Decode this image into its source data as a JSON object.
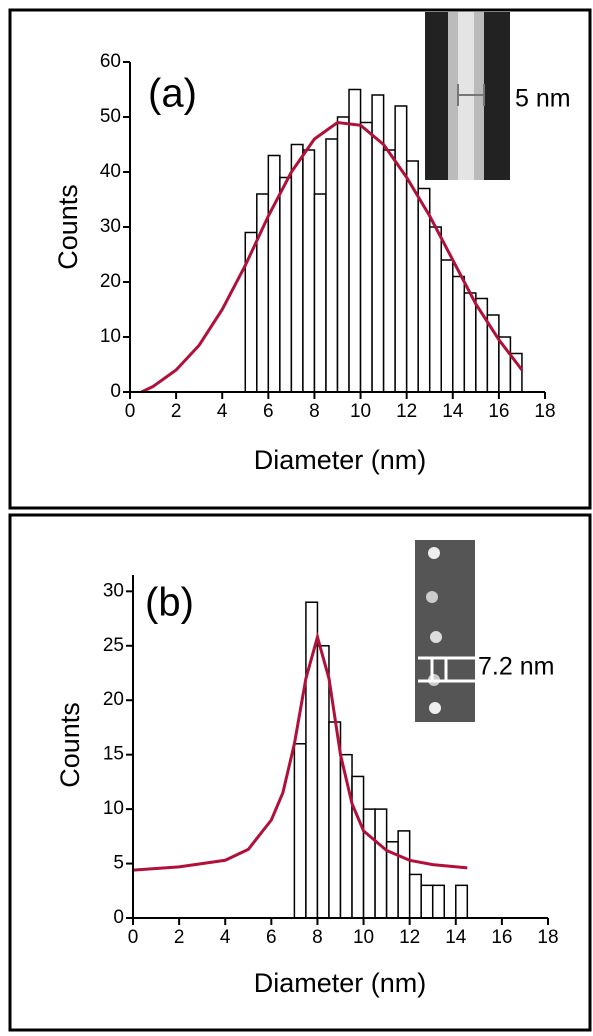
{
  "chart_data": [
    {
      "type": "histogram",
      "label": "(a)",
      "annotation": "5 nm",
      "xlabel": "Diameter (nm)",
      "ylabel": "Counts",
      "xlim": [
        0,
        18
      ],
      "ylim": [
        0,
        60
      ],
      "xticks": [
        0,
        2,
        4,
        6,
        8,
        10,
        12,
        14,
        16,
        18
      ],
      "yticks": [
        0,
        10,
        20,
        30,
        40,
        50,
        60
      ],
      "color": "#000000",
      "bins": [
        5,
        5.5,
        6,
        6.5,
        7,
        7.5,
        8,
        8.5,
        9,
        9.5,
        10,
        10.5,
        11,
        11.5,
        12,
        12.5,
        13,
        13.5,
        14,
        14.5,
        15,
        15.5,
        16,
        16.5,
        17
      ],
      "counts": [
        29,
        36,
        43,
        39,
        45,
        44,
        36,
        46,
        50,
        55,
        49,
        54,
        44,
        52,
        42,
        37,
        30,
        24,
        21,
        18,
        17,
        14,
        10,
        7
      ],
      "series": [
        {
          "color": "#b0103a",
          "x": [
            0.5,
            1,
            2,
            3,
            4,
            5,
            6,
            7,
            8,
            9,
            10,
            11,
            12,
            13,
            14,
            15,
            16,
            17
          ],
          "values": [
            0,
            1,
            4,
            8.5,
            15,
            23,
            32,
            40,
            46,
            49,
            48.5,
            45,
            39,
            32,
            24,
            16,
            9.5,
            4
          ]
        }
      ]
    },
    {
      "type": "histogram",
      "label": "(b)",
      "annotation": "7.2 nm",
      "xlabel": "Diameter (nm)",
      "ylabel": "Counts",
      "xlim": [
        0,
        18
      ],
      "ylim": [
        0,
        31.5
      ],
      "xticks": [
        0,
        2,
        4,
        6,
        8,
        10,
        12,
        14,
        16,
        18
      ],
      "yticks": [
        0,
        5,
        10,
        15,
        20,
        25,
        30
      ],
      "color": "#000000",
      "bins": [
        7,
        7.5,
        8,
        8.5,
        9,
        9.5,
        10,
        10.5,
        11,
        11.5,
        12,
        12.5,
        13,
        13.5,
        14,
        14.5
      ],
      "counts": [
        16,
        29,
        25,
        18,
        15,
        13,
        10,
        10,
        7,
        8,
        4,
        3,
        3,
        0,
        3
      ],
      "series": [
        {
          "color": "#b0103a",
          "x": [
            0,
            2,
            4,
            5,
            6,
            6.5,
            7,
            7.5,
            8,
            8.5,
            9,
            9.5,
            10,
            11,
            12,
            13,
            14.5
          ],
          "values": [
            4.4,
            4.7,
            5.3,
            6.3,
            9,
            11.5,
            16,
            22,
            25.8,
            22,
            15,
            10.5,
            8,
            6.2,
            5.3,
            4.9,
            4.6
          ]
        }
      ]
    }
  ]
}
